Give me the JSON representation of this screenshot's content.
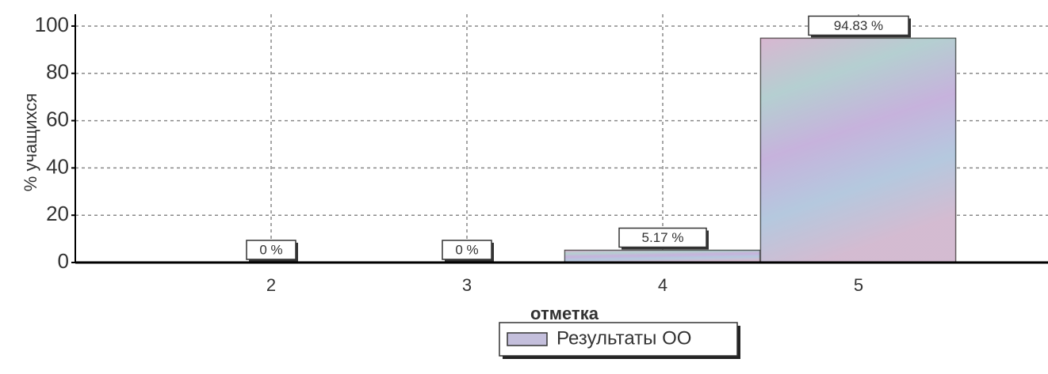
{
  "chart_data": {
    "type": "bar",
    "x_label": "отметка",
    "y_label": "% учащихся",
    "categories": [
      "2",
      "3",
      "4",
      "5"
    ],
    "series": [
      {
        "name": "Результаты ОО",
        "color": "#c4bfdc",
        "values": [
          0,
          0,
          5.17,
          94.83
        ],
        "value_labels": [
          "0 %",
          "0 %",
          "5.17 %",
          "94.83 %"
        ]
      }
    ],
    "ylim": [
      0,
      105
    ],
    "yticks": [
      0,
      20,
      40,
      60,
      80,
      100
    ],
    "grid": true,
    "legend": "bottom"
  }
}
